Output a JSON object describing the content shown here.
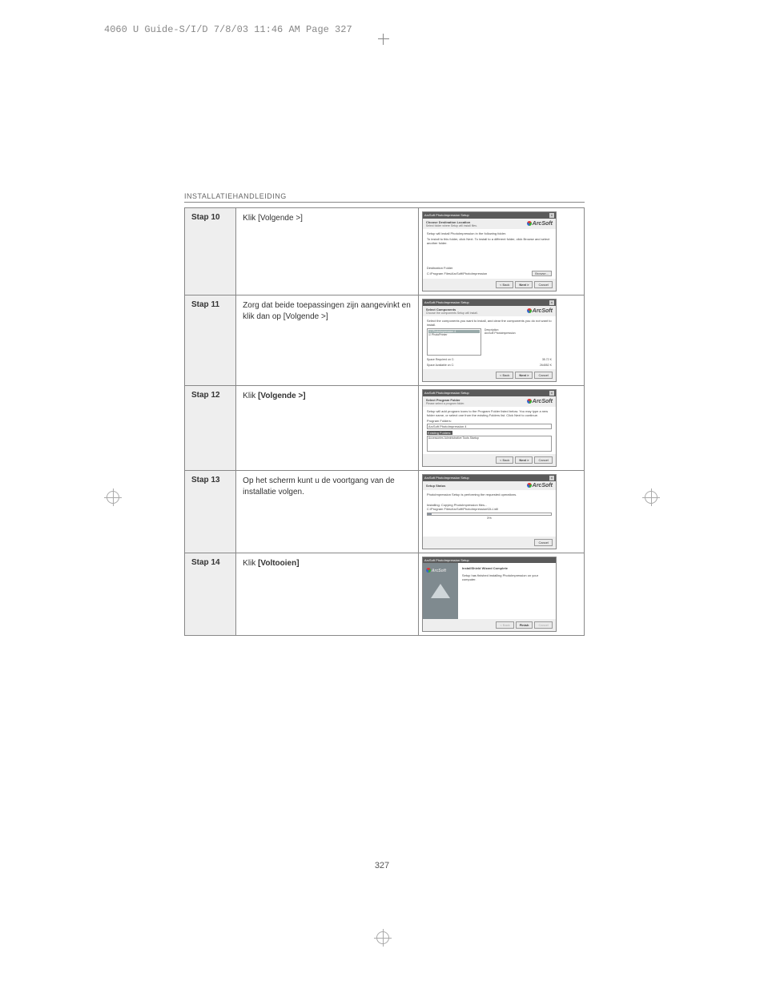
{
  "print_header": "4060 U Guide-S/I/D  7/8/03  11:46 AM  Page 327",
  "section_title": "INSTALLATIEHANDLEIDING",
  "page_number": "327",
  "brand": "ArcSoft",
  "dlg_common": {
    "titlebar": "ArcSoft PhotoImpression Setup",
    "close": "×",
    "back": "< Back",
    "next": "Next >",
    "cancel": "Cancel",
    "finish": "Finish"
  },
  "steps": [
    {
      "label": "Stap 10",
      "desc_plain": "Klik [Volgende >]",
      "desc_bold": "",
      "dlg": {
        "h1": "Choose Destination Location",
        "h2": "Select folder where Setup will install files.",
        "body1": "Setup will install PhotoImpression in the following folder.",
        "body2": "To install to this folder, click Next. To install to a different folder, click Browse and select another folder.",
        "dest_lbl": "Destination Folder",
        "dest_path": "C:\\Program Files\\ArcSoft\\PhotoImpression",
        "browse": "Browse..."
      }
    },
    {
      "label": "Stap 11",
      "desc_plain": "Zorg dat beide toepassingen zijn aangevinkt en klik dan op [Volgende >]",
      "dlg": {
        "h1": "Select Components",
        "h2": "Choose the components Setup will install.",
        "body1": "Select the components you want to install, and clear the components you do not want to install.",
        "item1": "☑ PhotoImpression 4",
        "item2": "☑ PhotoPrinter",
        "desc_h": "Description",
        "desc_t": "ArcSoft PhotoImpression",
        "space_req_l": "Space Required on C:",
        "space_req_v": "35.72 K",
        "space_av_l": "Space Available on C:",
        "space_av_v": "264552 K"
      }
    },
    {
      "label": "Stap 12",
      "desc_pre": "Klik ",
      "desc_bold": "[Volgende >]",
      "dlg": {
        "h1": "Select Program Folder",
        "h2": "Please select a program folder.",
        "body1": "Setup will add program icons to the Program Folder listed below. You may type a new folder name, or select one from the existing Folders list. Click Next to continue.",
        "pf_lbl": "Program Folders:",
        "pf_val": "ArcSoft PhotoImpression 4",
        "ef_lbl": "Existing Folders:",
        "ef_items": "Accessories\nAdministrative Tools\nStartup"
      }
    },
    {
      "label": "Stap 13",
      "desc_plain": "Op het scherm kunt u de voortgang van de installatie volgen.",
      "dlg": {
        "h1": "Setup Status",
        "body1": "PhotoImpression Setup is performing the requested operations.",
        "body2": "Installing: Copying PhotoImpression files...",
        "body3": "C:\\Program Files\\ArcSoft\\PhotoImpression\\DLL\\dll",
        "percent": "3%",
        "progress": 3
      }
    },
    {
      "label": "Stap 14",
      "desc_pre": "Klik ",
      "desc_bold": "[Voltooien]",
      "dlg": {
        "h1": "InstallShield Wizard Complete",
        "body1": "Setup has finished installing PhotoImpression on your computer."
      }
    }
  ]
}
